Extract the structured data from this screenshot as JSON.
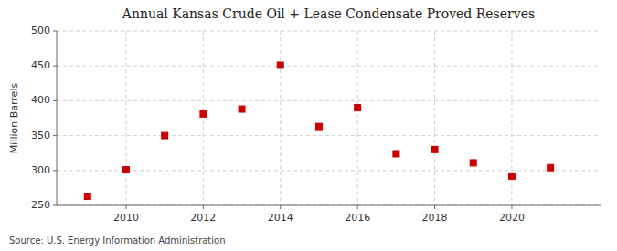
{
  "chart_data": {
    "type": "scatter",
    "title": "Annual Kansas Crude Oil + Lease Condensate Proved Reserves",
    "y_label": "Million Barrels",
    "annotation": "Source: U.S. Energy Information Administration",
    "x": [
      2009,
      2010,
      2011,
      2012,
      2013,
      2014,
      2015,
      2016,
      2017,
      2018,
      2019,
      2020,
      2021
    ],
    "values": [
      263,
      301,
      350,
      381,
      388,
      451,
      363,
      390,
      324,
      330,
      311,
      292,
      304
    ],
    "xlim": [
      2008.2,
      2022.3
    ],
    "xticks": [
      2010,
      2012,
      2014,
      2016,
      2018,
      2020
    ],
    "ylim": [
      250,
      500
    ],
    "yticks": [
      250,
      300,
      350,
      400,
      450,
      500
    ],
    "color": "#cc0000",
    "marker": "square",
    "grid": true
  }
}
